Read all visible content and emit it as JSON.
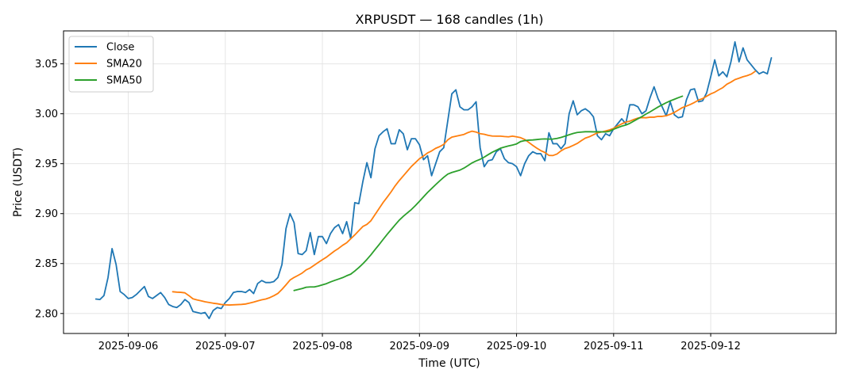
{
  "chart_data": {
    "type": "line",
    "title": "XRPUSDT — 168 candles (1h)",
    "xlabel": "Time (UTC)",
    "ylabel": "Price (USDT)",
    "grid": true,
    "legend_position": "top-left",
    "x_start": "2025-09-05 16:00",
    "x_step_hours": 1,
    "xlim_hours": [
      -8,
      183
    ],
    "ylim": [
      2.78,
      3.083
    ],
    "x_ticks": [
      {
        "label": "2025-09-06",
        "hour": 8
      },
      {
        "label": "2025-09-07",
        "hour": 32
      },
      {
        "label": "2025-09-08",
        "hour": 56
      },
      {
        "label": "2025-09-09",
        "hour": 80
      },
      {
        "label": "2025-09-10",
        "hour": 104
      },
      {
        "label": "2025-09-11",
        "hour": 128
      },
      {
        "label": "2025-09-12",
        "hour": 152
      }
    ],
    "y_ticks": [
      {
        "label": "2.80",
        "value": 2.8
      },
      {
        "label": "2.85",
        "value": 2.85
      },
      {
        "label": "2.90",
        "value": 2.9
      },
      {
        "label": "2.95",
        "value": 2.95
      },
      {
        "label": "3.00",
        "value": 3.0
      },
      {
        "label": "3.05",
        "value": 3.05
      }
    ],
    "series": [
      {
        "name": "Close",
        "color": "#1f77b4",
        "start_index": 0,
        "values": [
          2.8145,
          2.814,
          2.818,
          2.836,
          2.865,
          2.849,
          2.822,
          2.819,
          2.815,
          2.816,
          2.819,
          2.823,
          2.827,
          2.817,
          2.815,
          2.818,
          2.821,
          2.816,
          2.809,
          2.807,
          2.806,
          2.809,
          2.814,
          2.811,
          2.802,
          2.801,
          2.8,
          2.801,
          2.795,
          2.803,
          2.806,
          2.805,
          2.811,
          2.815,
          2.821,
          2.822,
          2.822,
          2.821,
          2.824,
          2.82,
          2.83,
          2.833,
          2.831,
          2.831,
          2.832,
          2.836,
          2.849,
          2.885,
          2.9,
          2.891,
          2.86,
          2.859,
          2.863,
          2.881,
          2.859,
          2.877,
          2.877,
          2.87,
          2.88,
          2.886,
          2.889,
          2.88,
          2.892,
          2.875,
          2.911,
          2.91,
          2.932,
          2.951,
          2.936,
          2.965,
          2.978,
          2.982,
          2.985,
          2.97,
          2.97,
          2.984,
          2.98,
          2.964,
          2.975,
          2.975,
          2.969,
          2.954,
          2.958,
          2.938,
          2.95,
          2.962,
          2.966,
          2.993,
          3.02,
          3.024,
          3.007,
          3.004,
          3.004,
          3.007,
          3.012,
          2.966,
          2.947,
          2.953,
          2.954,
          2.962,
          2.965,
          2.955,
          2.951,
          2.95,
          2.947,
          2.938,
          2.95,
          2.958,
          2.962,
          2.96,
          2.96,
          2.953,
          2.981,
          2.97,
          2.97,
          2.965,
          2.97,
          3.0,
          3.013,
          2.999,
          3.003,
          3.005,
          3.002,
          2.997,
          2.978,
          2.974,
          2.98,
          2.978,
          2.985,
          2.99,
          2.995,
          2.99,
          3.009,
          3.009,
          3.007,
          3.0,
          3.003,
          3.016,
          3.027,
          3.015,
          3.007,
          2.998,
          3.012,
          2.999,
          2.996,
          2.997,
          3.014,
          3.024,
          3.025,
          3.012,
          3.013,
          3.021,
          3.037,
          3.054,
          3.038,
          3.042,
          3.037,
          3.052,
          3.072,
          3.052,
          3.066,
          3.054,
          3.049,
          3.044,
          3.04,
          3.042,
          3.04,
          3.056
        ]
      },
      {
        "name": "SMA20",
        "color": "#ff7f0e",
        "start_index": 19,
        "values": [
          2.8218,
          2.8214,
          2.8212,
          2.8207,
          2.8179,
          2.8147,
          2.8136,
          2.8127,
          2.8117,
          2.811,
          2.8103,
          2.8098,
          2.809,
          2.8087,
          2.8085,
          2.8087,
          2.8089,
          2.8091,
          2.8095,
          2.8104,
          2.8114,
          2.8126,
          2.8137,
          2.8145,
          2.8159,
          2.8178,
          2.8201,
          2.8241,
          2.8287,
          2.8335,
          2.8361,
          2.8382,
          2.8405,
          2.8437,
          2.8456,
          2.8484,
          2.8512,
          2.8539,
          2.8564,
          2.8595,
          2.8626,
          2.8652,
          2.8683,
          2.8708,
          2.8748,
          2.8787,
          2.8829,
          2.8871,
          2.8892,
          2.8929,
          2.899,
          2.905,
          2.9111,
          2.9164,
          2.9219,
          2.9279,
          2.9331,
          2.9378,
          2.9425,
          2.9472,
          2.9511,
          2.955,
          2.9577,
          2.9608,
          2.9628,
          2.9654,
          2.9671,
          2.9694,
          2.9739,
          2.9766,
          2.9775,
          2.9784,
          2.9793,
          2.9812,
          2.9826,
          2.9817,
          2.9801,
          2.9795,
          2.9784,
          2.9777,
          2.9776,
          2.9776,
          2.9772,
          2.9769,
          2.9776,
          2.9769,
          2.9761,
          2.9743,
          2.9714,
          2.9684,
          2.9656,
          2.9631,
          2.9613,
          2.9583,
          2.9582,
          2.9597,
          2.9629,
          2.9652,
          2.9665,
          2.9683,
          2.9703,
          2.973,
          2.9756,
          2.977,
          2.9789,
          2.9809,
          2.9818,
          2.9828,
          2.9839,
          2.9854,
          2.9878,
          2.9899,
          2.9917,
          2.9926,
          2.9943,
          2.9957,
          2.9962,
          2.996,
          2.9966,
          2.9966,
          2.9974,
          2.9974,
          2.998,
          2.9995,
          3.0013,
          3.0038,
          3.0062,
          3.0077,
          3.0094,
          3.0114,
          3.0137,
          3.0152,
          3.0176,
          3.0199,
          3.0216,
          3.024,
          3.0262,
          3.0296,
          3.0317,
          3.0342,
          3.0356,
          3.0371,
          3.0382,
          3.0397,
          3.0425
        ]
      },
      {
        "name": "SMA50",
        "color": "#2ca02c",
        "start_index": 49,
        "values": [
          2.823,
          2.824,
          2.825,
          2.8263,
          2.8266,
          2.8266,
          2.8275,
          2.8287,
          2.8299,
          2.8316,
          2.8331,
          2.8345,
          2.8359,
          2.8378,
          2.8394,
          2.8425,
          2.846,
          2.8498,
          2.8541,
          2.8588,
          2.8639,
          2.8689,
          2.8741,
          2.8792,
          2.884,
          2.8888,
          2.8935,
          2.8973,
          2.9007,
          2.9041,
          2.9081,
          2.9124,
          2.9168,
          2.9212,
          2.9251,
          2.929,
          2.9328,
          2.9364,
          2.9396,
          2.9412,
          2.9424,
          2.9436,
          2.9456,
          2.9482,
          2.9508,
          2.9528,
          2.9544,
          2.9566,
          2.9591,
          2.9615,
          2.9635,
          2.9655,
          2.9667,
          2.9678,
          2.9687,
          2.9698,
          2.9722,
          2.9731,
          2.9736,
          2.9738,
          2.9742,
          2.9746,
          2.9748,
          2.9746,
          2.9747,
          2.9753,
          2.9763,
          2.9776,
          2.979,
          2.9803,
          2.9813,
          2.9817,
          2.982,
          2.982,
          2.9819,
          2.982,
          2.9819,
          2.9818,
          2.9825,
          2.9845,
          2.9861,
          2.9876,
          2.9887,
          2.9904,
          2.9927,
          2.995,
          2.9972,
          2.9997,
          3.0019,
          3.0044,
          3.0068,
          3.009,
          3.0111,
          3.0129,
          3.0145,
          3.0161,
          3.0176
        ]
      }
    ]
  }
}
